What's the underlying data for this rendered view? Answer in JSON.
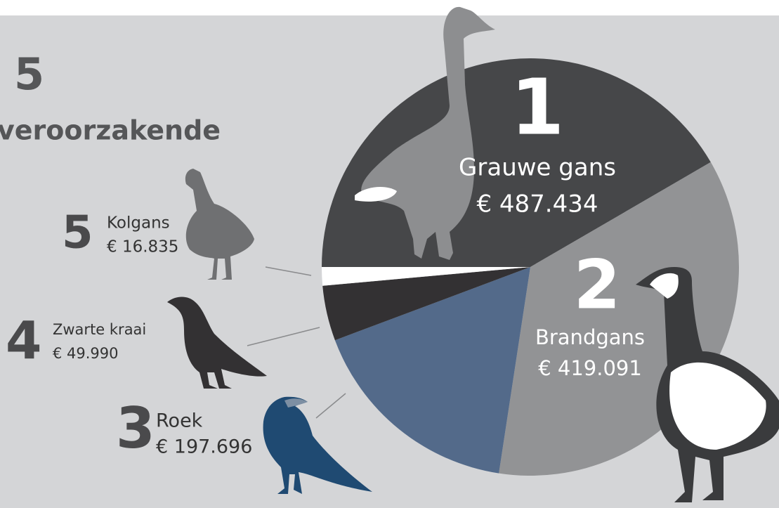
{
  "chart_data": {
    "type": "pie",
    "title_number": "5",
    "title": "veroorzakende",
    "ranks": [
      1,
      2,
      3,
      4,
      5
    ],
    "categories": [
      "Grauwe gans",
      "Brandgans",
      "Roek",
      "Zwarte kraai",
      "Kolgans"
    ],
    "values": [
      487434,
      419091,
      197696,
      49990,
      16835
    ],
    "value_labels": [
      "€ 487.434",
      "€ 419.091",
      "€ 197.696",
      "€ 49.990",
      "€ 16.835"
    ],
    "colors": [
      "#464749",
      "#929395",
      "#536a8a",
      "#333133",
      "#ffffff"
    ]
  }
}
